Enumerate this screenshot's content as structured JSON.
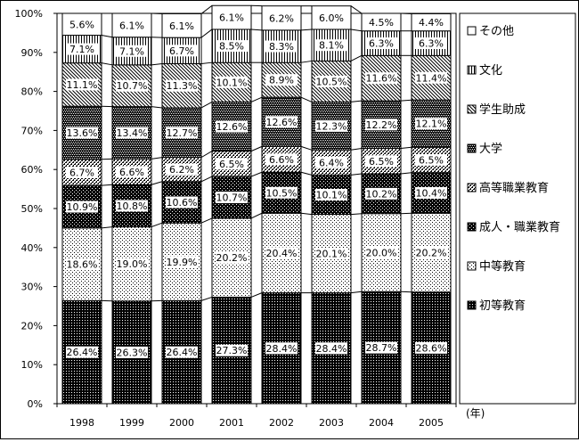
{
  "chart_data": {
    "type": "bar",
    "stacked": true,
    "percent": true,
    "categories": [
      "1998",
      "1999",
      "2000",
      "2001",
      "2002",
      "2003",
      "2004",
      "2005"
    ],
    "xunit": "(年)",
    "yticks": [
      "0%",
      "10%",
      "20%",
      "30%",
      "40%",
      "50%",
      "60%",
      "70%",
      "80%",
      "90%",
      "100%"
    ],
    "ylim": [
      0,
      100
    ],
    "grid": false,
    "legend_position": "right",
    "series": [
      {
        "name": "初等教育",
        "pattern": "dark",
        "values": [
          26.4,
          26.3,
          26.4,
          27.3,
          28.4,
          28.4,
          28.7,
          28.6
        ],
        "labels": [
          "26.4%",
          "26.3%",
          "26.4%",
          "27.3%",
          "28.4%",
          "28.4%",
          "28.7%",
          "28.6%"
        ]
      },
      {
        "name": "中等教育",
        "pattern": "light-dots",
        "values": [
          18.6,
          19.0,
          19.9,
          20.2,
          20.4,
          20.1,
          20.0,
          20.2
        ],
        "labels": [
          "18.6%",
          "19.0%",
          "19.9%",
          "20.2%",
          "20.4%",
          "20.1%",
          "20.0%",
          "20.2%"
        ]
      },
      {
        "name": "成人・職業教育",
        "pattern": "dark-check",
        "values": [
          10.9,
          10.8,
          10.6,
          10.7,
          10.5,
          10.1,
          10.2,
          10.4
        ],
        "labels": [
          "10.9%",
          "10.8%",
          "10.6%",
          "10.7%",
          "10.5%",
          "10.1%",
          "10.2%",
          "10.4%"
        ]
      },
      {
        "name": "高等職業教育",
        "pattern": "light-check",
        "values": [
          6.7,
          6.6,
          6.2,
          6.5,
          6.6,
          6.4,
          6.5,
          6.5
        ],
        "labels": [
          "6.7%",
          "6.6%",
          "6.2%",
          "6.5%",
          "6.6%",
          "6.4%",
          "6.5%",
          "6.5%"
        ]
      },
      {
        "name": "大学",
        "pattern": "medium-check",
        "values": [
          13.6,
          13.4,
          12.7,
          12.6,
          12.6,
          12.3,
          12.2,
          12.1
        ],
        "labels": [
          "13.6%",
          "13.4%",
          "12.7%",
          "12.6%",
          "12.6%",
          "12.3%",
          "12.2%",
          "12.1%"
        ]
      },
      {
        "name": "学生助成",
        "pattern": "diagonal",
        "values": [
          11.1,
          10.7,
          11.3,
          10.1,
          8.9,
          10.5,
          11.6,
          11.4
        ],
        "labels": [
          "11.1%",
          "10.7%",
          "11.3%",
          "10.1%",
          "8.9%",
          "10.5%",
          "11.6%",
          "11.4%"
        ]
      },
      {
        "name": "文化",
        "pattern": "vertical",
        "values": [
          7.1,
          7.1,
          6.7,
          8.5,
          8.3,
          8.1,
          6.3,
          6.3
        ],
        "labels": [
          "7.1%",
          "7.1%",
          "6.7%",
          "8.5%",
          "8.3%",
          "8.1%",
          "6.3%",
          "6.3%"
        ]
      },
      {
        "name": "その他",
        "pattern": "white",
        "values": [
          5.6,
          6.1,
          6.1,
          6.1,
          6.2,
          6.0,
          4.5,
          4.4
        ],
        "labels": [
          "5.6%",
          "6.1%",
          "6.1%",
          "6.1%",
          "6.2%",
          "6.0%",
          "4.5%",
          "4.4%"
        ]
      }
    ],
    "legend_order": [
      "その他",
      "文化",
      "学生助成",
      "大学",
      "高等職業教育",
      "成人・職業教育",
      "中等教育",
      "初等教育"
    ]
  }
}
